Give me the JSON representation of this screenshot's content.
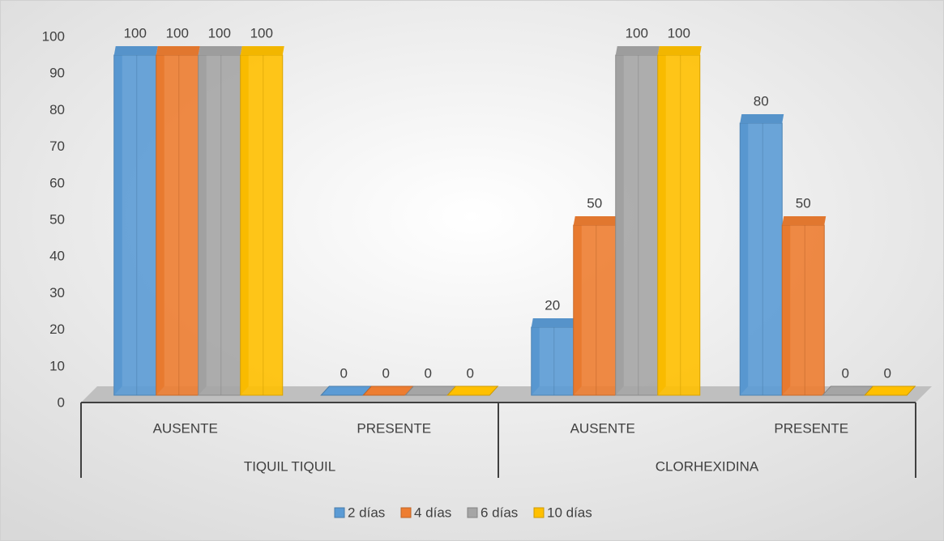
{
  "chart_data": {
    "type": "bar3d",
    "groups": [
      "TIQUIL TIQUIL",
      "CLORHEXIDINA"
    ],
    "categories": [
      "AUSENTE",
      "PRESENTE",
      "AUSENTE",
      "PRESENTE"
    ],
    "series": [
      {
        "name": "2 días",
        "color": "#5b9bd5",
        "values": [
          100,
          0,
          20,
          80
        ]
      },
      {
        "name": "4 días",
        "color": "#ed7d31",
        "values": [
          100,
          0,
          50,
          50
        ]
      },
      {
        "name": "6 días",
        "color": "#a5a5a5",
        "values": [
          100,
          0,
          100,
          0
        ]
      },
      {
        "name": "10 días",
        "color": "#ffc000",
        "values": [
          100,
          0,
          100,
          0
        ]
      }
    ],
    "ylim": [
      0,
      100
    ],
    "yticks": [
      0,
      10,
      20,
      30,
      40,
      50,
      60,
      70,
      80,
      90,
      100
    ],
    "legend": "bottom"
  }
}
